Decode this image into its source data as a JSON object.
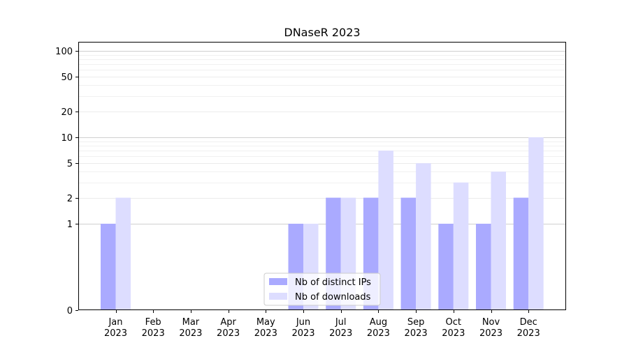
{
  "chart_data": {
    "type": "bar",
    "title": "DNaseR 2023",
    "xlabel": "",
    "ylabel": "",
    "yscale": "symlog",
    "ylim": [
      0,
      127
    ],
    "y_ticks": [
      {
        "value": 0,
        "label": "0"
      },
      {
        "value": 1,
        "label": "1"
      },
      {
        "value": 2,
        "label": "2"
      },
      {
        "value": 5,
        "label": "5"
      },
      {
        "value": 10,
        "label": "10"
      },
      {
        "value": 20,
        "label": "20"
      },
      {
        "value": 50,
        "label": "50"
      },
      {
        "value": 100,
        "label": "100"
      }
    ],
    "categories": [
      [
        "Jan",
        "2023"
      ],
      [
        "Feb",
        "2023"
      ],
      [
        "Mar",
        "2023"
      ],
      [
        "Apr",
        "2023"
      ],
      [
        "May",
        "2023"
      ],
      [
        "Jun",
        "2023"
      ],
      [
        "Jul",
        "2023"
      ],
      [
        "Aug",
        "2023"
      ],
      [
        "Sep",
        "2023"
      ],
      [
        "Oct",
        "2023"
      ],
      [
        "Nov",
        "2023"
      ],
      [
        "Dec",
        "2023"
      ]
    ],
    "series": [
      {
        "name": "Nb of distinct IPs",
        "color": "#aaaaff",
        "values": [
          1,
          0,
          0,
          0,
          0,
          1,
          2,
          2,
          2,
          1,
          1,
          2
        ]
      },
      {
        "name": "Nb of downloads",
        "color": "#ddddff",
        "values": [
          2,
          0,
          0,
          0,
          0,
          1,
          2,
          7,
          5,
          3,
          4,
          10
        ]
      }
    ],
    "grid": true,
    "legend_position": "bottom-center"
  }
}
